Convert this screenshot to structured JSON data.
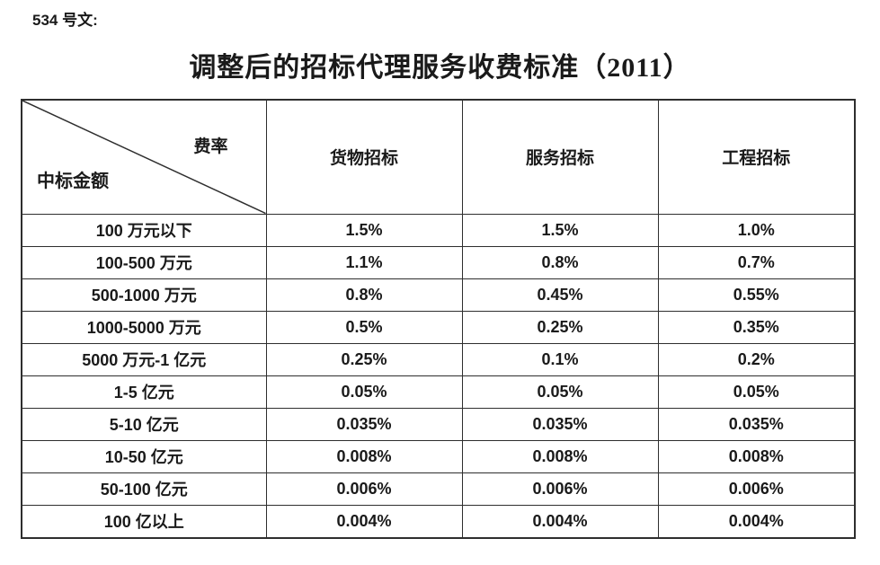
{
  "page": {
    "doc_number": "534 号文:",
    "title": "调整后的招标代理服务收费标准（2011）"
  },
  "table": {
    "corner": {
      "top_right": "费率",
      "bottom_left": "中标金额"
    },
    "columns": [
      "货物招标",
      "服务招标",
      "工程招标"
    ],
    "rows": [
      {
        "label": "100 万元以下",
        "values": [
          "1.5%",
          "1.5%",
          "1.0%"
        ]
      },
      {
        "label": "100-500 万元",
        "values": [
          "1.1%",
          "0.8%",
          "0.7%"
        ]
      },
      {
        "label": "500-1000 万元",
        "values": [
          "0.8%",
          "0.45%",
          "0.55%"
        ]
      },
      {
        "label": "1000-5000 万元",
        "values": [
          "0.5%",
          "0.25%",
          "0.35%"
        ]
      },
      {
        "label": "5000 万元-1 亿元",
        "values": [
          "0.25%",
          "0.1%",
          "0.2%"
        ]
      },
      {
        "label": "1-5 亿元",
        "values": [
          "0.05%",
          "0.05%",
          "0.05%"
        ]
      },
      {
        "label": "5-10 亿元",
        "values": [
          "0.035%",
          "0.035%",
          "0.035%"
        ]
      },
      {
        "label": "10-50 亿元",
        "values": [
          "0.008%",
          "0.008%",
          "0.008%"
        ]
      },
      {
        "label": "50-100 亿元",
        "values": [
          "0.006%",
          "0.006%",
          "0.006%"
        ]
      },
      {
        "label": "100 亿以上",
        "values": [
          "0.004%",
          "0.004%",
          "0.004%"
        ]
      }
    ]
  },
  "colors": {
    "text": "#1a1a1a",
    "border": "#2e2e2e",
    "background": "#ffffff"
  }
}
